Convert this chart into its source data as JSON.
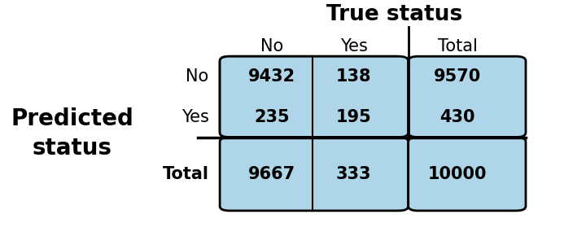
{
  "title": "True status",
  "ylabel_line1": "Predicted",
  "ylabel_line2": "status",
  "col_headers": [
    "No",
    "Yes",
    "Total"
  ],
  "row_headers": [
    "No",
    "Yes",
    "Total"
  ],
  "matrix": [
    [
      "9432",
      "138",
      "9570"
    ],
    [
      "235",
      "195",
      "430"
    ],
    [
      "9667",
      "333",
      "10000"
    ]
  ],
  "cell_color": "#AED6E8",
  "bg_color": "#FFFFFF",
  "text_color": "#000000",
  "title_fontsize": 19,
  "header_fontsize": 15,
  "cell_fontsize": 15,
  "ylabel_fontsize": 20,
  "total_label_fontsize": 15,
  "total_bold": true
}
